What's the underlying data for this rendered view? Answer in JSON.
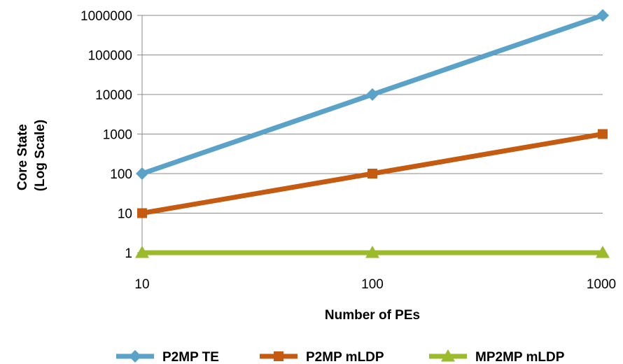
{
  "chart_data": {
    "type": "line",
    "xlabel": "Number of PEs",
    "ylabel_lines": [
      "Core State",
      "(Log Scale)"
    ],
    "x_scale": "log",
    "y_scale": "log",
    "x": [
      10,
      100,
      1000
    ],
    "x_tick_labels": [
      "10",
      "100",
      "1000"
    ],
    "y_tick_values": [
      1,
      10,
      100,
      1000,
      10000,
      100000,
      1000000
    ],
    "y_tick_labels": [
      "1",
      "10",
      "100",
      "1000",
      "10000",
      "100000",
      "1000000"
    ],
    "xlim": [
      10,
      1000
    ],
    "ylim": [
      1,
      1000000
    ],
    "grid": "horizontal",
    "legend_position": "bottom",
    "series": [
      {
        "name": "P2MP TE",
        "values": [
          100,
          10000,
          1000000
        ],
        "color": "#5aa2c8",
        "marker": "diamond"
      },
      {
        "name": "P2MP mLDP",
        "values": [
          10,
          100,
          1000
        ],
        "color": "#c55a11",
        "marker": "square"
      },
      {
        "name": "MP2MP mLDP",
        "values": [
          1,
          1,
          1
        ],
        "color": "#9bbb2c",
        "marker": "triangle"
      }
    ]
  }
}
